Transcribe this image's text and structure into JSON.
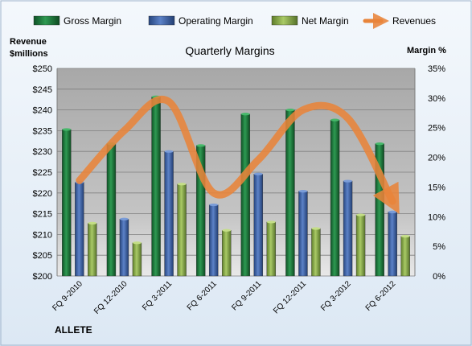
{
  "chart_data": {
    "type": "bar",
    "title": "Quarterly Margins",
    "left_axis_title": [
      "Revenue",
      "$millions"
    ],
    "right_axis_title": "Margin %",
    "categories": [
      "FQ 9-2010",
      "FQ 12-2010",
      "FQ 3-2011",
      "FQ 6-2011",
      "FQ 9-2011",
      "FQ 12-2011",
      "FQ 3-2012",
      "FQ 6-2012"
    ],
    "left_axis": {
      "min": 200,
      "max": 250,
      "step": 5,
      "tick_labels": [
        "$200",
        "$205",
        "$210",
        "$215",
        "$220",
        "$225",
        "$230",
        "$235",
        "$240",
        "$245",
        "$250"
      ]
    },
    "right_axis": {
      "min": 0,
      "max": 35,
      "step": 5,
      "tick_labels": [
        "0%",
        "5%",
        "10%",
        "15%",
        "20%",
        "25%",
        "30%",
        "35%"
      ]
    },
    "series": [
      {
        "name": "Gross Margin",
        "axis": "right",
        "color": "#1E7A3C",
        "values": [
          24.7,
          22.3,
          30.2,
          22.0,
          27.3,
          28.0,
          26.3,
          22.3
        ]
      },
      {
        "name": "Operating Margin",
        "axis": "right",
        "color": "#3E64A8",
        "values": [
          15.8,
          9.6,
          21.0,
          12.0,
          17.2,
          14.3,
          16.0,
          10.8
        ]
      },
      {
        "name": "Net Margin",
        "axis": "right",
        "color": "#8DB04A",
        "values": [
          8.9,
          5.6,
          15.5,
          7.7,
          9.1,
          8.0,
          10.3,
          6.7
        ]
      },
      {
        "name": "Revenues",
        "axis": "left",
        "color": "#E8843A",
        "type": "line",
        "values": [
          223,
          235,
          242,
          220,
          228,
          240,
          238,
          218
        ]
      }
    ],
    "legend_position": "top",
    "grid": true,
    "background": {
      "plot": "#B5B5B5",
      "outer": "#E3EEF8"
    }
  },
  "brand": "ALLETE"
}
